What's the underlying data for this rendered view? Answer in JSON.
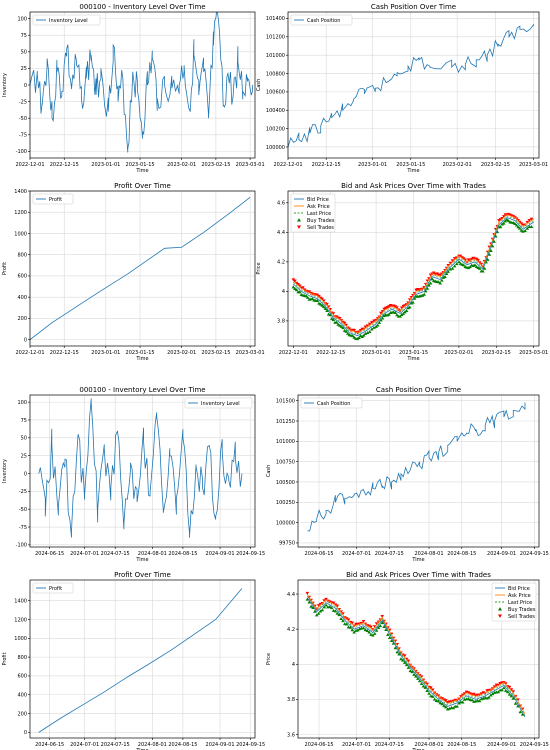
{
  "chart_data": [
    {
      "type": "line",
      "title": "000100 - Inventory Level Over Time",
      "xlabel": "Time",
      "ylabel": "Inventory",
      "x_ticks": [
        "2022-12-01",
        "2022-12-15",
        "2023-01-01",
        "2023-01-15",
        "2023-02-01",
        "2023-02-15",
        "2023-03-01"
      ],
      "x_range": [
        "2022-12-01",
        "2023-03-03"
      ],
      "y_ticks": [
        100,
        75,
        50,
        25,
        0,
        -25,
        -50,
        -75,
        -100
      ],
      "ylim": [
        -110,
        110
      ],
      "legend": "top-left",
      "grid": true,
      "series": [
        {
          "name": "Inventory Level",
          "color": "#1f77b4",
          "x": [
            "2022-12-01",
            "2022-12-04",
            "2022-12-06",
            "2022-12-08",
            "2022-12-10",
            "2022-12-12",
            "2022-12-14",
            "2022-12-16",
            "2022-12-18",
            "2022-12-20",
            "2022-12-22",
            "2022-12-24",
            "2022-12-26",
            "2022-12-28",
            "2022-12-30",
            "2023-01-02",
            "2023-01-04",
            "2023-01-06",
            "2023-01-08",
            "2023-01-10",
            "2023-01-12",
            "2023-01-14",
            "2023-01-16",
            "2023-01-18",
            "2023-01-20",
            "2023-01-22",
            "2023-01-25",
            "2023-01-28",
            "2023-01-31",
            "2023-02-02",
            "2023-02-04",
            "2023-02-06",
            "2023-02-08",
            "2023-02-10",
            "2023-02-12",
            "2023-02-14",
            "2023-02-16",
            "2023-02-18",
            "2023-02-20",
            "2023-02-22",
            "2023-02-24",
            "2023-02-26",
            "2023-02-28",
            "2023-03-02"
          ],
          "y": [
            0,
            15,
            -30,
            40,
            -50,
            20,
            -10,
            55,
            -5,
            30,
            -20,
            10,
            45,
            -15,
            25,
            -40,
            60,
            -25,
            5,
            -95,
            20,
            -10,
            -70,
            0,
            40,
            -20,
            0,
            -5,
            0,
            30,
            -35,
            45,
            -15,
            20,
            -50,
            60,
            100,
            -30,
            15,
            -20,
            35,
            -10,
            10,
            0
          ]
        }
      ]
    },
    {
      "type": "line",
      "title": "Cash Position Over Time",
      "xlabel": "Time",
      "ylabel": "Cash",
      "x_ticks": [
        "2022-12-01",
        "2022-12-15",
        "2023-01-01",
        "2023-01-15",
        "2023-02-01",
        "2023-02-15",
        "2023-03-01"
      ],
      "x_range": [
        "2022-12-01",
        "2023-03-03"
      ],
      "y_ticks": [
        100000,
        100200,
        100400,
        100600,
        100800,
        101000,
        101200,
        101400
      ],
      "ylim": [
        99880,
        101470
      ],
      "legend": "top-left",
      "grid": true,
      "series": [
        {
          "name": "Cash Position",
          "color": "#1f77b4",
          "x": [
            "2022-12-01",
            "2022-12-05",
            "2022-12-09",
            "2022-12-13",
            "2022-12-17",
            "2022-12-21",
            "2022-12-25",
            "2022-12-29",
            "2023-01-02",
            "2023-01-06",
            "2023-01-10",
            "2023-01-14",
            "2023-01-18",
            "2023-01-22",
            "2023-01-30",
            "2023-02-04",
            "2023-02-08",
            "2023-02-12",
            "2023-02-16",
            "2023-02-20",
            "2023-02-24",
            "2023-03-01"
          ],
          "y": [
            100000,
            100080,
            100150,
            100230,
            100320,
            100400,
            100520,
            100580,
            100640,
            100700,
            100810,
            100880,
            100950,
            100870,
            100870,
            100900,
            100950,
            101000,
            101120,
            101200,
            101280,
            101320
          ]
        }
      ]
    },
    {
      "type": "line",
      "title": "Profit Over Time",
      "xlabel": "Time",
      "ylabel": "Profit",
      "x_ticks": [
        "2022-12-01",
        "2022-12-15",
        "2023-01-01",
        "2023-01-15",
        "2023-02-01",
        "2023-02-15",
        "2023-03-01"
      ],
      "x_range": [
        "2022-12-01",
        "2023-03-03"
      ],
      "y_ticks": [
        0,
        200,
        400,
        600,
        800,
        1000,
        1200,
        1400
      ],
      "ylim": [
        -60,
        1400
      ],
      "legend": "top-left",
      "grid": true,
      "series": [
        {
          "name": "Profit",
          "color": "#1f77b4",
          "x": [
            "2022-12-01",
            "2022-12-10",
            "2022-12-20",
            "2022-12-30",
            "2023-01-10",
            "2023-01-20",
            "2023-01-25",
            "2023-02-01",
            "2023-02-10",
            "2023-02-20",
            "2023-03-01"
          ],
          "y": [
            0,
            160,
            310,
            460,
            620,
            780,
            860,
            870,
            1010,
            1180,
            1340
          ]
        }
      ]
    },
    {
      "type": "line",
      "title": "Bid and Ask Prices Over Time with Trades",
      "xlabel": "Time",
      "ylabel": "Price",
      "x_ticks": [
        "2022-12-01",
        "2022-12-15",
        "2023-01-01",
        "2023-01-15",
        "2023-02-01",
        "2023-02-15",
        "2023-03-01"
      ],
      "x_range": [
        "2022-11-29",
        "2023-03-03"
      ],
      "y_ticks": [
        3.8,
        4.0,
        4.2,
        4.4,
        4.6
      ],
      "ylim": [
        3.63,
        4.68
      ],
      "legend": "top-left",
      "grid": true,
      "series": [
        {
          "name": "Bid Price",
          "color": "#1f77b4",
          "x": [
            "2022-12-01",
            "2022-12-04",
            "2022-12-07",
            "2022-12-10",
            "2022-12-13",
            "2022-12-16",
            "2022-12-19",
            "2022-12-22",
            "2022-12-25",
            "2022-12-28",
            "2023-01-01",
            "2023-01-04",
            "2023-01-07",
            "2023-01-10",
            "2023-01-13",
            "2023-01-16",
            "2023-01-19",
            "2023-01-22",
            "2023-01-25",
            "2023-01-28",
            "2023-02-01",
            "2023-02-04",
            "2023-02-07",
            "2023-02-10",
            "2023-02-13",
            "2023-02-16",
            "2023-02-19",
            "2023-02-22",
            "2023-02-25",
            "2023-03-01"
          ],
          "y": [
            4.05,
            4.0,
            3.97,
            3.95,
            3.9,
            3.82,
            3.78,
            3.72,
            3.7,
            3.73,
            3.78,
            3.85,
            3.88,
            3.85,
            3.9,
            3.98,
            4.0,
            4.1,
            4.08,
            4.15,
            4.22,
            4.18,
            4.2,
            4.15,
            4.3,
            4.45,
            4.5,
            4.48,
            4.42,
            4.47
          ]
        },
        {
          "name": "Ask Price",
          "color": "#ff7f0e"
        },
        {
          "name": "Last Price",
          "color": "#2ca02c"
        },
        {
          "name": "Buy Trades",
          "color": "#008000"
        },
        {
          "name": "Sell Trades",
          "color": "#ff0000"
        }
      ]
    },
    {
      "type": "line",
      "title": "000100 - Inventory Level Over Time",
      "xlabel": "Time",
      "ylabel": "Inventory",
      "x_ticks": [
        "2024-06-15",
        "2024-07-01",
        "2024-07-15",
        "2024-08-01",
        "2024-08-15",
        "2024-09-01",
        "2024-09-15"
      ],
      "x_range": [
        "2024-06-06",
        "2024-09-17"
      ],
      "y_ticks": [
        100,
        75,
        50,
        25,
        0,
        -25,
        -50,
        -75,
        -100
      ],
      "ylim": [
        -103,
        110
      ],
      "legend": "top-right",
      "grid": true,
      "series": [
        {
          "name": "Inventory Level",
          "color": "#1f77b4",
          "x": [
            "2024-06-10",
            "2024-06-13",
            "2024-06-16",
            "2024-06-19",
            "2024-06-22",
            "2024-06-25",
            "2024-06-28",
            "2024-07-01",
            "2024-07-04",
            "2024-07-07",
            "2024-07-10",
            "2024-07-13",
            "2024-07-16",
            "2024-07-19",
            "2024-07-22",
            "2024-07-25",
            "2024-07-28",
            "2024-07-31",
            "2024-08-03",
            "2024-08-06",
            "2024-08-09",
            "2024-08-12",
            "2024-08-15",
            "2024-08-18",
            "2024-08-21",
            "2024-08-24",
            "2024-08-27",
            "2024-08-30",
            "2024-09-02",
            "2024-09-05",
            "2024-09-08",
            "2024-09-11"
          ],
          "y": [
            0,
            -60,
            40,
            -45,
            20,
            -80,
            55,
            -30,
            100,
            -50,
            35,
            -20,
            60,
            -70,
            15,
            -40,
            45,
            -25,
            80,
            -55,
            25,
            -35,
            50,
            -90,
            10,
            -20,
            40,
            -60,
            30,
            -10,
            20,
            0
          ]
        }
      ]
    },
    {
      "type": "line",
      "title": "Cash Position Over Time",
      "xlabel": "Time",
      "ylabel": "Cash",
      "x_ticks": [
        "2024-06-15",
        "2024-07-01",
        "2024-07-15",
        "2024-08-01",
        "2024-08-15",
        "2024-09-01",
        "2024-09-15"
      ],
      "x_range": [
        "2024-06-06",
        "2024-09-17"
      ],
      "y_ticks": [
        99750,
        100000,
        100250,
        100500,
        100750,
        101000,
        101250,
        101500
      ],
      "ylim": [
        99700,
        101570
      ],
      "legend": "top-left",
      "grid": true,
      "series": [
        {
          "name": "Cash Position",
          "color": "#1f77b4",
          "x": [
            "2024-06-10",
            "2024-06-14",
            "2024-06-18",
            "2024-06-22",
            "2024-06-26",
            "2024-06-30",
            "2024-07-04",
            "2024-07-08",
            "2024-07-12",
            "2024-07-16",
            "2024-07-20",
            "2024-07-24",
            "2024-07-28",
            "2024-08-01",
            "2024-08-05",
            "2024-08-09",
            "2024-08-13",
            "2024-08-17",
            "2024-08-21",
            "2024-08-25",
            "2024-08-29",
            "2024-09-02",
            "2024-09-06",
            "2024-09-11"
          ],
          "y": [
            99900,
            100050,
            100150,
            100250,
            100300,
            100350,
            100400,
            100420,
            100450,
            100500,
            100600,
            100650,
            100700,
            100800,
            100850,
            100950,
            101000,
            101100,
            101150,
            101200,
            101250,
            101300,
            101380,
            101480
          ]
        }
      ]
    },
    {
      "type": "line",
      "title": "Profit Over Time",
      "xlabel": "Time",
      "ylabel": "Profit",
      "x_ticks": [
        "2024-06-15",
        "2024-07-01",
        "2024-07-15",
        "2024-08-01",
        "2024-08-15",
        "2024-09-01",
        "2024-09-15"
      ],
      "x_range": [
        "2024-06-06",
        "2024-09-17"
      ],
      "y_ticks": [
        0,
        200,
        400,
        600,
        800,
        1000,
        1200,
        1400
      ],
      "ylim": [
        -60,
        1620
      ],
      "legend": "top-left",
      "grid": true,
      "series": [
        {
          "name": "Profit",
          "color": "#1f77b4",
          "x": [
            "2024-06-10",
            "2024-06-20",
            "2024-06-30",
            "2024-07-10",
            "2024-07-20",
            "2024-07-30",
            "2024-08-10",
            "2024-08-20",
            "2024-08-30",
            "2024-09-11"
          ],
          "y": [
            0,
            150,
            290,
            430,
            580,
            720,
            880,
            1040,
            1200,
            1530
          ]
        }
      ]
    },
    {
      "type": "line",
      "title": "Bid and Ask Prices Over Time with Trades",
      "xlabel": "Time",
      "ylabel": "Price",
      "x_ticks": [
        "2024-06-15",
        "2024-07-01",
        "2024-07-15",
        "2024-08-01",
        "2024-08-15",
        "2024-09-01",
        "2024-09-15"
      ],
      "x_range": [
        "2024-06-06",
        "2024-09-17"
      ],
      "y_ticks": [
        3.6,
        3.8,
        4.0,
        4.2,
        4.4
      ],
      "ylim": [
        3.58,
        4.48
      ],
      "legend": "top-right",
      "grid": true,
      "series": [
        {
          "name": "Bid Price",
          "color": "#1f77b4",
          "x": [
            "2024-06-10",
            "2024-06-14",
            "2024-06-18",
            "2024-06-22",
            "2024-06-26",
            "2024-06-30",
            "2024-07-04",
            "2024-07-08",
            "2024-07-12",
            "2024-07-16",
            "2024-07-20",
            "2024-07-24",
            "2024-07-28",
            "2024-08-01",
            "2024-08-05",
            "2024-08-09",
            "2024-08-13",
            "2024-08-17",
            "2024-08-21",
            "2024-08-25",
            "2024-08-29",
            "2024-09-02",
            "2024-09-06",
            "2024-09-11"
          ],
          "y": [
            4.38,
            4.3,
            4.35,
            4.32,
            4.25,
            4.2,
            4.22,
            4.18,
            4.25,
            4.15,
            4.05,
            3.98,
            3.92,
            3.85,
            3.8,
            3.76,
            3.78,
            3.82,
            3.8,
            3.82,
            3.85,
            3.88,
            3.82,
            3.7
          ]
        },
        {
          "name": "Ask Price",
          "color": "#ff7f0e"
        },
        {
          "name": "Last Price",
          "color": "#2ca02c"
        },
        {
          "name": "Buy Trades",
          "color": "#008000"
        },
        {
          "name": "Sell Trades",
          "color": "#ff0000"
        }
      ]
    }
  ]
}
